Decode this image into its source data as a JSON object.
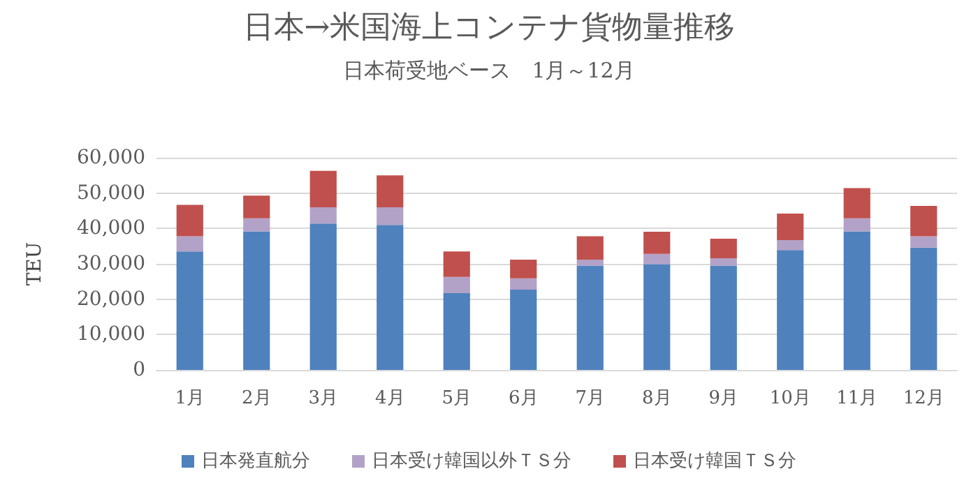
{
  "chart_data": {
    "type": "bar",
    "title": "日本→米国海上コンテナ貨物量推移",
    "subtitle": "日本荷受地ベース　1月～12月",
    "ylabel": "TEU",
    "categories": [
      "1月",
      "2月",
      "3月",
      "4月",
      "5月",
      "6月",
      "7月",
      "8月",
      "9月",
      "10月",
      "11月",
      "12月"
    ],
    "series": [
      {
        "name": "日本発直航分",
        "color": "#4f81bd",
        "values": [
          33500,
          39200,
          41400,
          41000,
          21700,
          22700,
          29500,
          29900,
          29500,
          33900,
          39200,
          34600
        ]
      },
      {
        "name": "日本受け韓国以外ＴＳ分",
        "color": "#b3a2c7",
        "values": [
          4300,
          3700,
          4600,
          5000,
          4600,
          3200,
          1700,
          2900,
          2100,
          2800,
          3700,
          3200
        ]
      },
      {
        "name": "日本受け韓国ＴＳ分",
        "color": "#c0504d",
        "values": [
          8900,
          6400,
          10300,
          9000,
          7200,
          5300,
          6600,
          6300,
          5500,
          7500,
          8500,
          8600
        ]
      }
    ],
    "stacked": true,
    "ylim": [
      0,
      60000
    ],
    "yticks": [
      0,
      {
        "value": 10000,
        "label": "10,000"
      },
      {
        "value": 20000,
        "label": "20,000"
      },
      {
        "value": 30000,
        "label": "30,000"
      },
      {
        "value": 40000,
        "label": "40,000"
      },
      {
        "value": 50000,
        "label": "50,000"
      },
      {
        "value": 60000,
        "label": "60,000"
      }
    ],
    "grid": "y",
    "legend": "bottom"
  }
}
